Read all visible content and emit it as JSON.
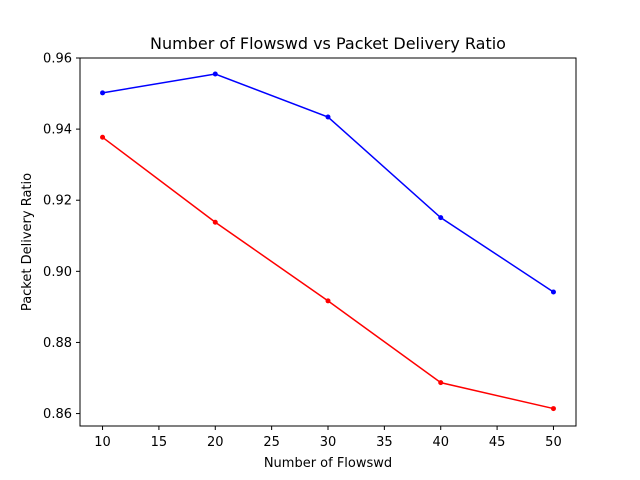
{
  "chart_data": {
    "type": "line",
    "title": "Number of Flowswd vs Packet Delivery Ratio",
    "xlabel": "Number of Flowswd",
    "ylabel": "Packet Delivery Ratio",
    "x": [
      10,
      20,
      30,
      40,
      50
    ],
    "xlim": [
      8,
      52
    ],
    "ylim": [
      0.8565,
      0.96
    ],
    "xticks": [
      10,
      15,
      20,
      25,
      30,
      35,
      40,
      45,
      50
    ],
    "yticks": [
      0.86,
      0.88,
      0.9,
      0.92,
      0.94,
      0.96
    ],
    "grid": false,
    "legend": "none",
    "series": [
      {
        "color": "#0000ff",
        "marker": "dot",
        "values": [
          0.9502,
          0.9555,
          0.9434,
          0.9151,
          0.8942
        ]
      },
      {
        "color": "#ff0000",
        "marker": "dot",
        "values": [
          0.9377,
          0.9138,
          0.8917,
          0.8687,
          0.8614
        ]
      }
    ]
  }
}
